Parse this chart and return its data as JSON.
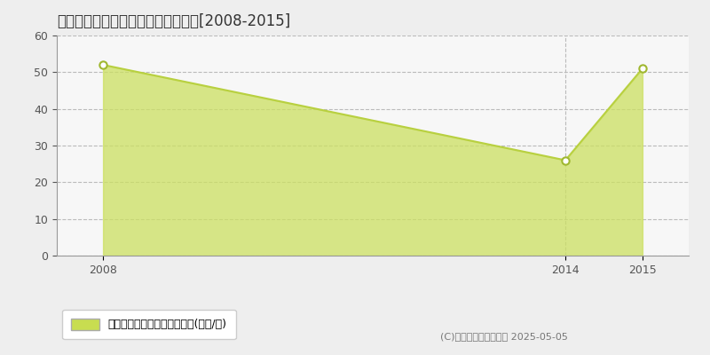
{
  "title": "宮崎市源藤町　マンション価格推移[2008-2015]",
  "x_values": [
    2008,
    2014,
    2015
  ],
  "y_values": [
    52,
    26,
    51
  ],
  "line_color": "#b8d040",
  "fill_color": "#cce060",
  "fill_alpha": 0.75,
  "marker_color": "#ffffff",
  "marker_edge_color": "#a0b830",
  "ylim": [
    0,
    60
  ],
  "yticks": [
    0,
    10,
    20,
    30,
    40,
    50,
    60
  ],
  "xlim_min": 2007.4,
  "xlim_max": 2015.6,
  "xtick_positions": [
    2008,
    2014,
    2015
  ],
  "grid_color": "#bbbbbb",
  "grid_style": "--",
  "plot_bg_color": "#f7f7f7",
  "fig_bg_color": "#eeeeee",
  "legend_label": "マンション価格　平均坪単価(万円/坪)",
  "legend_color": "#c8dd50",
  "copyright_text": "(C)土地価格ドットコム 2025-05-05",
  "vline_x": 2014
}
